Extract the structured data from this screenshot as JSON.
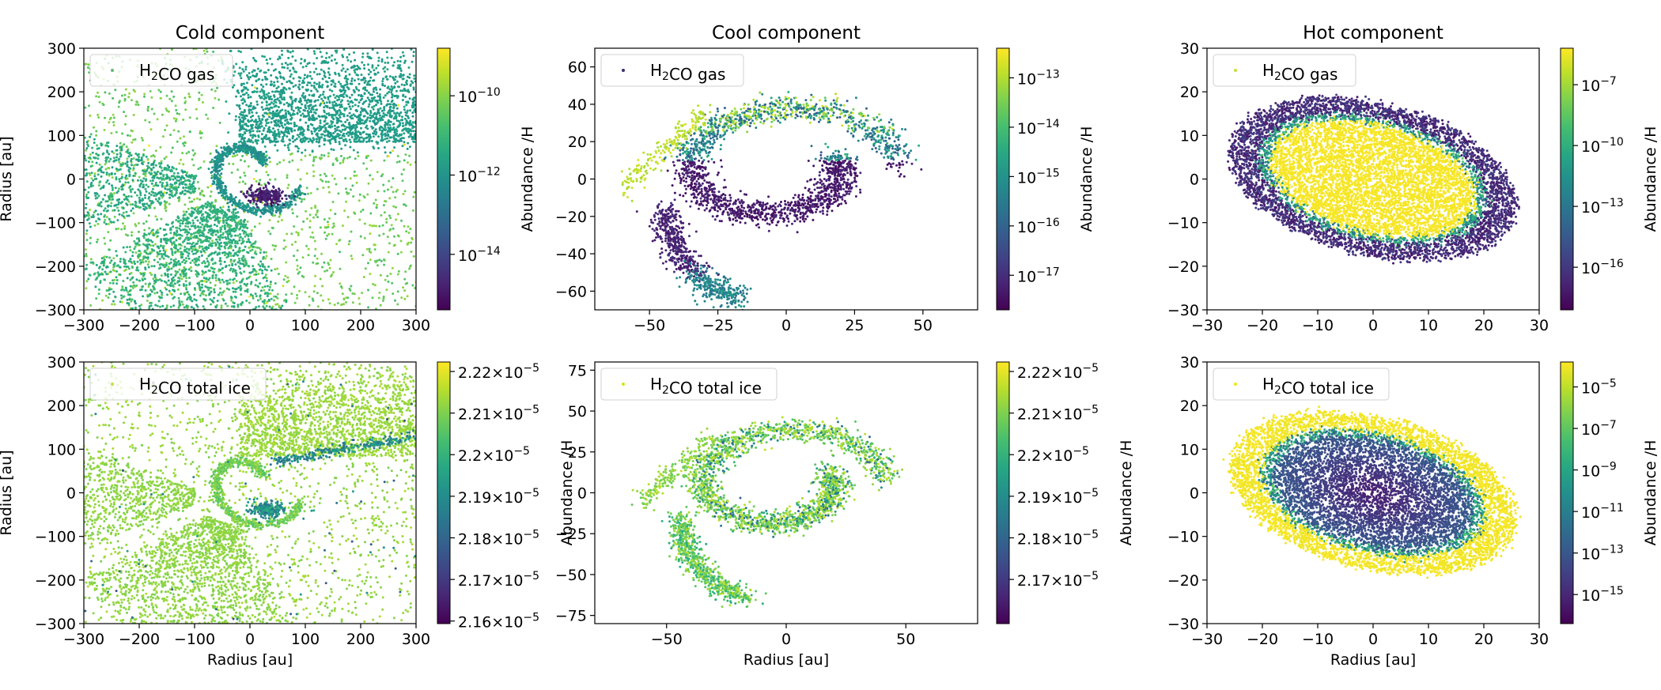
{
  "chart_data": [
    {
      "type": "scatter",
      "title": "Cold component",
      "xlabel": "",
      "ylabel": "Radius [au]",
      "legend": "H<sub>2</sub>CO gas",
      "legend_color": "#5fba6d",
      "xlim": [
        -300,
        300
      ],
      "ylim": [
        -300,
        300
      ],
      "xticks": [
        -300,
        -200,
        -100,
        0,
        100,
        200,
        300
      ],
      "yticks": [
        -300,
        -200,
        -100,
        0,
        100,
        200,
        300
      ],
      "colorbar": {
        "label": "Abundance /H",
        "scale": "log",
        "ticks": [
          "10^-10",
          "10^-12",
          "10^-14"
        ]
      },
      "pattern": "cold_gas"
    },
    {
      "type": "scatter",
      "title": "Cool component",
      "xlabel": "",
      "ylabel": "",
      "legend": "H<sub>2</sub>CO gas",
      "legend_color": "#3b2c72",
      "xlim": [
        -70,
        70
      ],
      "ylim": [
        -70,
        70
      ],
      "xticks": [
        -50,
        -25,
        0,
        25,
        50
      ],
      "yticks": [
        -60,
        -40,
        -20,
        0,
        20,
        40,
        60
      ],
      "colorbar": {
        "label": "Abundance /H",
        "scale": "log",
        "ticks": [
          "10^-13",
          "10^-14",
          "10^-15",
          "10^-16",
          "10^-17"
        ]
      },
      "pattern": "cool_gas"
    },
    {
      "type": "scatter",
      "title": "Hot component",
      "xlabel": "",
      "ylabel": "",
      "legend": "H<sub>2</sub>CO gas",
      "legend_color": "#c6e03a",
      "xlim": [
        -30,
        30
      ],
      "ylim": [
        -30,
        30
      ],
      "xticks": [
        -30,
        -20,
        -10,
        0,
        10,
        20,
        30
      ],
      "yticks": [
        -30,
        -20,
        -10,
        0,
        10,
        20,
        30
      ],
      "colorbar": {
        "label": "Abundance /H",
        "scale": "log",
        "ticks": [
          "10^-7",
          "10^-10",
          "10^-13",
          "10^-16"
        ]
      },
      "pattern": "hot_gas"
    },
    {
      "type": "scatter",
      "title": "",
      "xlabel": "Radius [au]",
      "ylabel": "Radius [au]",
      "legend": "H<sub>2</sub>CO total ice",
      "legend_color": "#c6e03a",
      "xlim": [
        -300,
        300
      ],
      "ylim": [
        -300,
        300
      ],
      "xticks": [
        -300,
        -200,
        -100,
        0,
        100,
        200,
        300
      ],
      "yticks": [
        -300,
        -200,
        -100,
        0,
        100,
        200,
        300
      ],
      "colorbar": {
        "label": "Abundance /H",
        "scale": "linear",
        "ticks": [
          "2.22×10^-5",
          "2.21×10^-5",
          "2.2×10^-5",
          "2.19×10^-5",
          "2.18×10^-5",
          "2.17×10^-5",
          "2.16×10^-5"
        ]
      },
      "pattern": "cold_ice"
    },
    {
      "type": "scatter",
      "title": "",
      "xlabel": "Radius [au]",
      "ylabel": "",
      "legend": "H<sub>2</sub>CO total ice",
      "legend_color": "#d8e219",
      "xlim": [
        -80,
        80
      ],
      "ylim": [
        -80,
        80
      ],
      "xticks": [
        -50,
        0,
        50
      ],
      "yticks": [
        -75,
        -50,
        -25,
        0,
        25,
        50,
        75
      ],
      "colorbar": {
        "label": "Abundance /H",
        "scale": "linear",
        "ticks": [
          "2.22×10^-5",
          "2.21×10^-5",
          "2.2×10^-5",
          "2.19×10^-5",
          "2.18×10^-5",
          "2.17×10^-5"
        ]
      },
      "pattern": "cool_ice"
    },
    {
      "type": "scatter",
      "title": "",
      "xlabel": "Radius [au]",
      "ylabel": "",
      "legend": "H<sub>2</sub>CO total ice",
      "legend_color": "#f2e51d",
      "xlim": [
        -30,
        30
      ],
      "ylim": [
        -30,
        30
      ],
      "xticks": [
        -30,
        -20,
        -10,
        0,
        10,
        20,
        30
      ],
      "yticks": [
        -30,
        -20,
        -10,
        0,
        10,
        20,
        30
      ],
      "colorbar": {
        "label": "Abundance /H",
        "scale": "log",
        "ticks": [
          "10^-5",
          "10^-7",
          "10^-9",
          "10^-11",
          "10^-13",
          "10^-15"
        ]
      },
      "pattern": "hot_ice"
    }
  ],
  "colormap": [
    "#440154",
    "#3b528b",
    "#21918c",
    "#5ec962",
    "#fde725"
  ]
}
